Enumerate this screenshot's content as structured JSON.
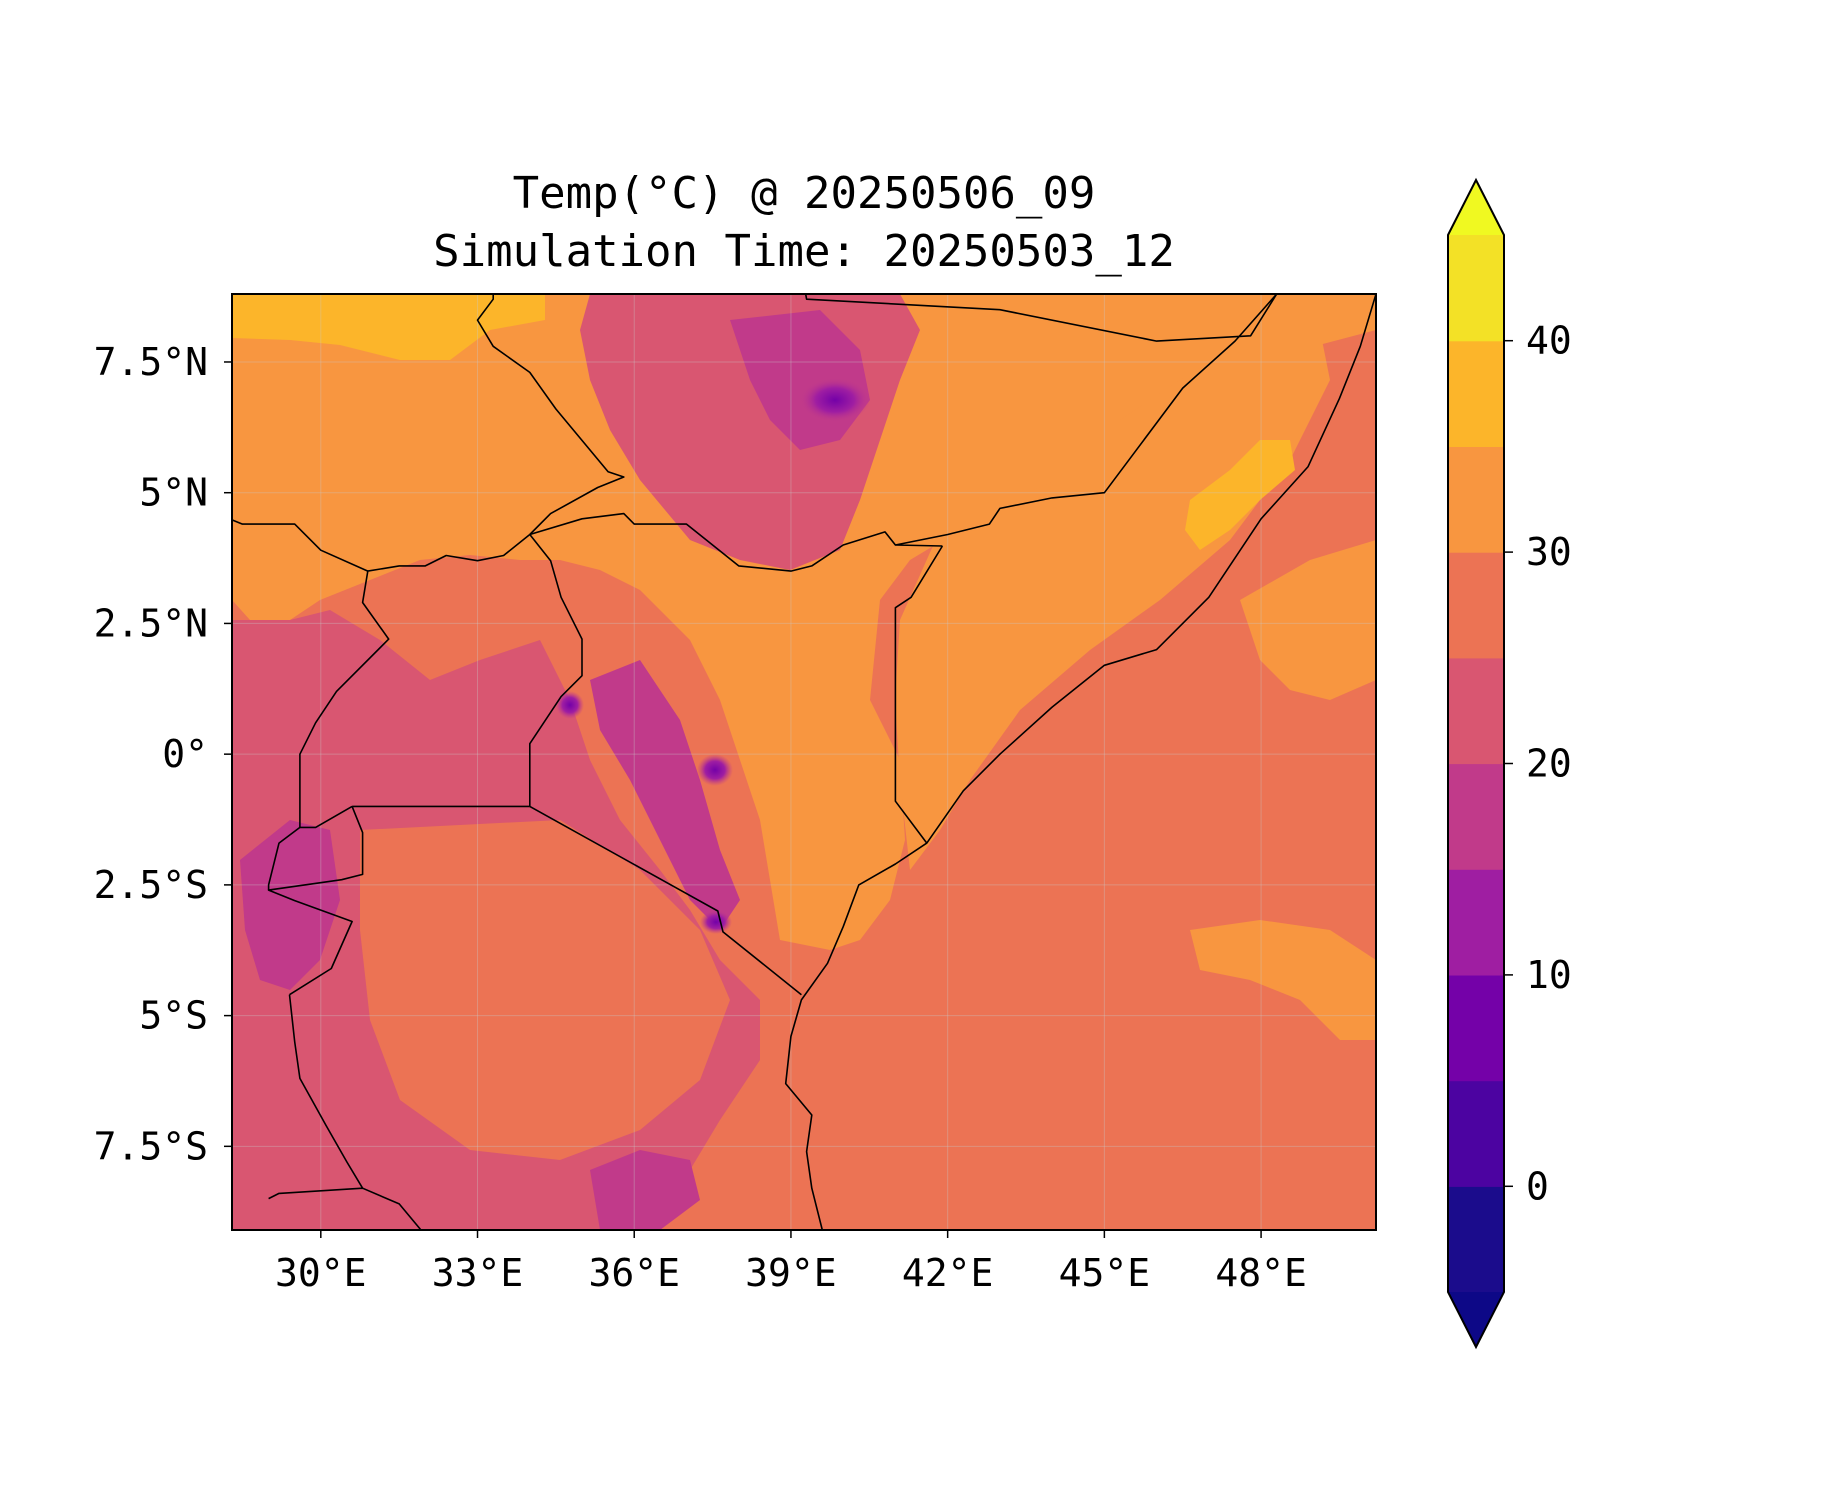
{
  "title": {
    "line1": "Temp(°C) @ 20250506_09",
    "line2": "Simulation Time: 20250503_12"
  },
  "map": {
    "lon_range": [
      28.3,
      50.2
    ],
    "lat_range": [
      -9.1,
      8.8
    ],
    "x_ticks": [
      {
        "value": 30,
        "label": "30°E"
      },
      {
        "value": 33,
        "label": "33°E"
      },
      {
        "value": 36,
        "label": "36°E"
      },
      {
        "value": 39,
        "label": "39°E"
      },
      {
        "value": 42,
        "label": "42°E"
      },
      {
        "value": 45,
        "label": "45°E"
      },
      {
        "value": 48,
        "label": "48°E"
      }
    ],
    "y_ticks": [
      {
        "value": 7.5,
        "label": "7.5°N"
      },
      {
        "value": 5,
        "label": "5°N"
      },
      {
        "value": 2.5,
        "label": "2.5°N"
      },
      {
        "value": 0,
        "label": "0°"
      },
      {
        "value": -2.5,
        "label": "2.5°S"
      },
      {
        "value": -5,
        "label": "5°S"
      },
      {
        "value": -7.5,
        "label": "7.5°S"
      }
    ],
    "gridlines": true,
    "borders": [
      {
        "name": "ethiopia-somalia",
        "points": [
          [
            39.1,
            9.8
          ],
          [
            39.3,
            8.7
          ],
          [
            43.0,
            8.5
          ],
          [
            46.0,
            7.9
          ],
          [
            47.8,
            8.0
          ],
          [
            48.3,
            8.8
          ]
        ]
      },
      {
        "name": "somalia-ethiopia-south",
        "points": [
          [
            48.3,
            8.8
          ],
          [
            47.5,
            7.9
          ],
          [
            46.5,
            7.0
          ],
          [
            45.0,
            5.0
          ],
          [
            44.0,
            4.9
          ],
          [
            43.0,
            4.7
          ],
          [
            42.8,
            4.4
          ],
          [
            42.0,
            4.2
          ],
          [
            41.0,
            4.0
          ]
        ]
      },
      {
        "name": "kenya-somalia",
        "points": [
          [
            41.9,
            3.98
          ],
          [
            41.3,
            3.0
          ],
          [
            41.0,
            2.8
          ],
          [
            41.0,
            -0.9
          ],
          [
            41.6,
            -1.7
          ]
        ]
      },
      {
        "name": "kenya-ethiopia",
        "points": [
          [
            34.0,
            4.2
          ],
          [
            35.0,
            4.5
          ],
          [
            35.8,
            4.6
          ],
          [
            36.0,
            4.4
          ],
          [
            37.0,
            4.4
          ],
          [
            38.0,
            3.6
          ],
          [
            39.0,
            3.5
          ],
          [
            39.4,
            3.6
          ],
          [
            40.0,
            4.0
          ],
          [
            40.8,
            4.25
          ],
          [
            41.0,
            4.0
          ],
          [
            41.9,
            3.98
          ]
        ]
      },
      {
        "name": "kenya-uganda",
        "points": [
          [
            34.0,
            4.2
          ],
          [
            34.4,
            3.7
          ],
          [
            34.6,
            3.0
          ],
          [
            35.0,
            2.2
          ],
          [
            35.0,
            1.5
          ],
          [
            34.6,
            1.1
          ],
          [
            34.0,
            0.2
          ],
          [
            34.0,
            -1.0
          ]
        ]
      },
      {
        "name": "kenya-tanzania",
        "points": [
          [
            34.0,
            -1.0
          ],
          [
            37.6,
            -3.0
          ],
          [
            37.7,
            -3.4
          ],
          [
            39.2,
            -4.6
          ]
        ]
      },
      {
        "name": "tanzania-uganda-border",
        "points": [
          [
            34.0,
            -1.0
          ],
          [
            30.6,
            -1.0
          ]
        ]
      },
      {
        "name": "uganda-drc",
        "points": [
          [
            30.6,
            -1.0
          ],
          [
            29.9,
            -1.4
          ],
          [
            29.6,
            -1.4
          ],
          [
            29.6,
            0.0
          ],
          [
            29.9,
            0.6
          ],
          [
            30.3,
            1.2
          ],
          [
            31.3,
            2.2
          ],
          [
            30.8,
            2.9
          ],
          [
            30.9,
            3.5
          ],
          [
            31.5,
            3.6
          ],
          [
            32.0,
            3.6
          ],
          [
            32.4,
            3.8
          ],
          [
            33.0,
            3.7
          ],
          [
            33.5,
            3.8
          ],
          [
            34.0,
            4.2
          ]
        ]
      },
      {
        "name": "south-sudan-drc-car",
        "points": [
          [
            30.9,
            3.5
          ],
          [
            30.0,
            3.9
          ],
          [
            29.5,
            4.4
          ],
          [
            28.5,
            4.4
          ],
          [
            28.0,
            4.6
          ]
        ]
      },
      {
        "name": "south-sudan-ethiopia",
        "points": [
          [
            34.0,
            4.2
          ],
          [
            34.4,
            4.6
          ],
          [
            35.3,
            5.1
          ],
          [
            35.8,
            5.3
          ],
          [
            35.5,
            5.4
          ],
          [
            35.0,
            6.0
          ],
          [
            34.5,
            6.6
          ],
          [
            34.0,
            7.3
          ],
          [
            33.3,
            7.8
          ],
          [
            33.0,
            8.3
          ],
          [
            33.3,
            8.7
          ],
          [
            33.3,
            9.5
          ]
        ]
      },
      {
        "name": "rwanda-burundi-tanzania",
        "points": [
          [
            30.6,
            -1.0
          ],
          [
            30.8,
            -1.5
          ],
          [
            30.8,
            -2.3
          ],
          [
            30.4,
            -2.4
          ],
          [
            29.0,
            -2.6
          ],
          [
            29.5,
            -2.8
          ],
          [
            30.6,
            -3.2
          ],
          [
            30.2,
            -4.1
          ],
          [
            29.4,
            -4.6
          ]
        ]
      },
      {
        "name": "rwanda-drc",
        "points": [
          [
            29.6,
            -1.4
          ],
          [
            29.2,
            -1.7
          ],
          [
            29.0,
            -2.5
          ],
          [
            29.0,
            -2.6
          ]
        ]
      },
      {
        "name": "tanzania-lake-tanganyika",
        "points": [
          [
            29.4,
            -4.6
          ],
          [
            29.5,
            -5.5
          ],
          [
            29.6,
            -6.2
          ],
          [
            30.1,
            -7.1
          ],
          [
            30.5,
            -7.8
          ],
          [
            30.8,
            -8.3
          ]
        ]
      },
      {
        "name": "tanzania-zambia-malawi",
        "points": [
          [
            29.0,
            -8.5
          ],
          [
            29.2,
            -8.4
          ],
          [
            30.8,
            -8.3
          ],
          [
            31.5,
            -8.6
          ],
          [
            32.0,
            -9.2
          ]
        ]
      },
      {
        "name": "coast-somalia",
        "points": [
          [
            50.2,
            8.8
          ],
          [
            49.9,
            7.8
          ],
          [
            49.5,
            6.8
          ],
          [
            48.9,
            5.5
          ],
          [
            48.0,
            4.5
          ],
          [
            47.0,
            3.0
          ],
          [
            46.0,
            2.0
          ],
          [
            45.0,
            1.7
          ],
          [
            44.0,
            0.9
          ],
          [
            43.0,
            0.0
          ],
          [
            42.3,
            -0.7
          ],
          [
            41.6,
            -1.7
          ],
          [
            41.0,
            -2.1
          ],
          [
            40.3,
            -2.5
          ],
          [
            40.0,
            -3.3
          ],
          [
            39.7,
            -4.0
          ],
          [
            39.2,
            -4.7
          ],
          [
            39.0,
            -5.4
          ],
          [
            38.9,
            -6.3
          ],
          [
            39.4,
            -6.9
          ],
          [
            39.3,
            -7.6
          ],
          [
            39.4,
            -8.3
          ],
          [
            39.6,
            -9.1
          ]
        ]
      }
    ]
  },
  "colorbar": {
    "levels": [
      -5,
      0,
      5,
      10,
      15,
      20,
      25,
      30,
      35,
      40,
      45
    ],
    "colors": [
      "#1b0c8c",
      "#4c03a1",
      "#7401a8",
      "#9f1ea2",
      "#c13a8a",
      "#d95671",
      "#ec7354",
      "#f89640",
      "#fcb52a",
      "#f3e126"
    ],
    "extend_low_color": "#0d0887",
    "extend_high_color": "#f0f921",
    "ticks": [
      {
        "value": 0,
        "label": "0"
      },
      {
        "value": 10,
        "label": "10"
      },
      {
        "value": 20,
        "label": "20"
      },
      {
        "value": 30,
        "label": "30"
      },
      {
        "value": 40,
        "label": "40"
      }
    ]
  }
}
